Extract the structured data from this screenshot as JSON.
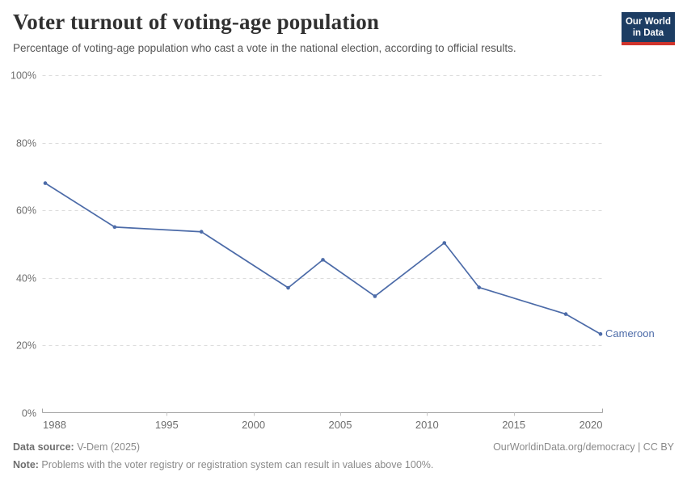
{
  "header": {
    "title": "Voter turnout of voting-age population",
    "subtitle": "Percentage of voting-age population who cast a vote in the national election, according to official results.",
    "logo": {
      "line1": "Our World",
      "line2": "in Data"
    }
  },
  "chart_data": {
    "type": "line",
    "title": "Voter turnout of voting-age population",
    "x": [
      1988,
      1992,
      1997,
      2002,
      2004,
      2007,
      2011,
      2013,
      2018,
      2020
    ],
    "series": [
      {
        "name": "Cameroon",
        "values": [
          68,
          55,
          53.6,
          37,
          45.3,
          34.5,
          50.3,
          37.1,
          29.2,
          23.3
        ],
        "color": "#4c6ba8"
      }
    ],
    "xlabel": "",
    "ylabel": "",
    "x_domain": [
      1988,
      2020
    ],
    "ylim": [
      0,
      100
    ],
    "yticks": [
      0,
      20,
      40,
      60,
      80,
      100
    ],
    "ytick_suffix": "%",
    "xticks": [
      1988,
      1995,
      2000,
      2005,
      2010,
      2015,
      2020
    ],
    "grid": "horizontal-dashed",
    "legend_position": "end-of-line-label"
  },
  "footer": {
    "datasource_label": "Data source:",
    "datasource_value": " V-Dem (2025)",
    "attribution": "OurWorldinData.org/democracy | CC BY",
    "note_label": "Note:",
    "note_text": " Problems with the voter registry or registration system can result in values above 100%."
  },
  "colors": {
    "line": "#4c6ba8",
    "grid": "#dcdcdc",
    "axis": "#a6a6a6",
    "tick": "#c4c4c4",
    "logo_bg": "#1d3d63",
    "logo_stripe": "#d0342c"
  }
}
